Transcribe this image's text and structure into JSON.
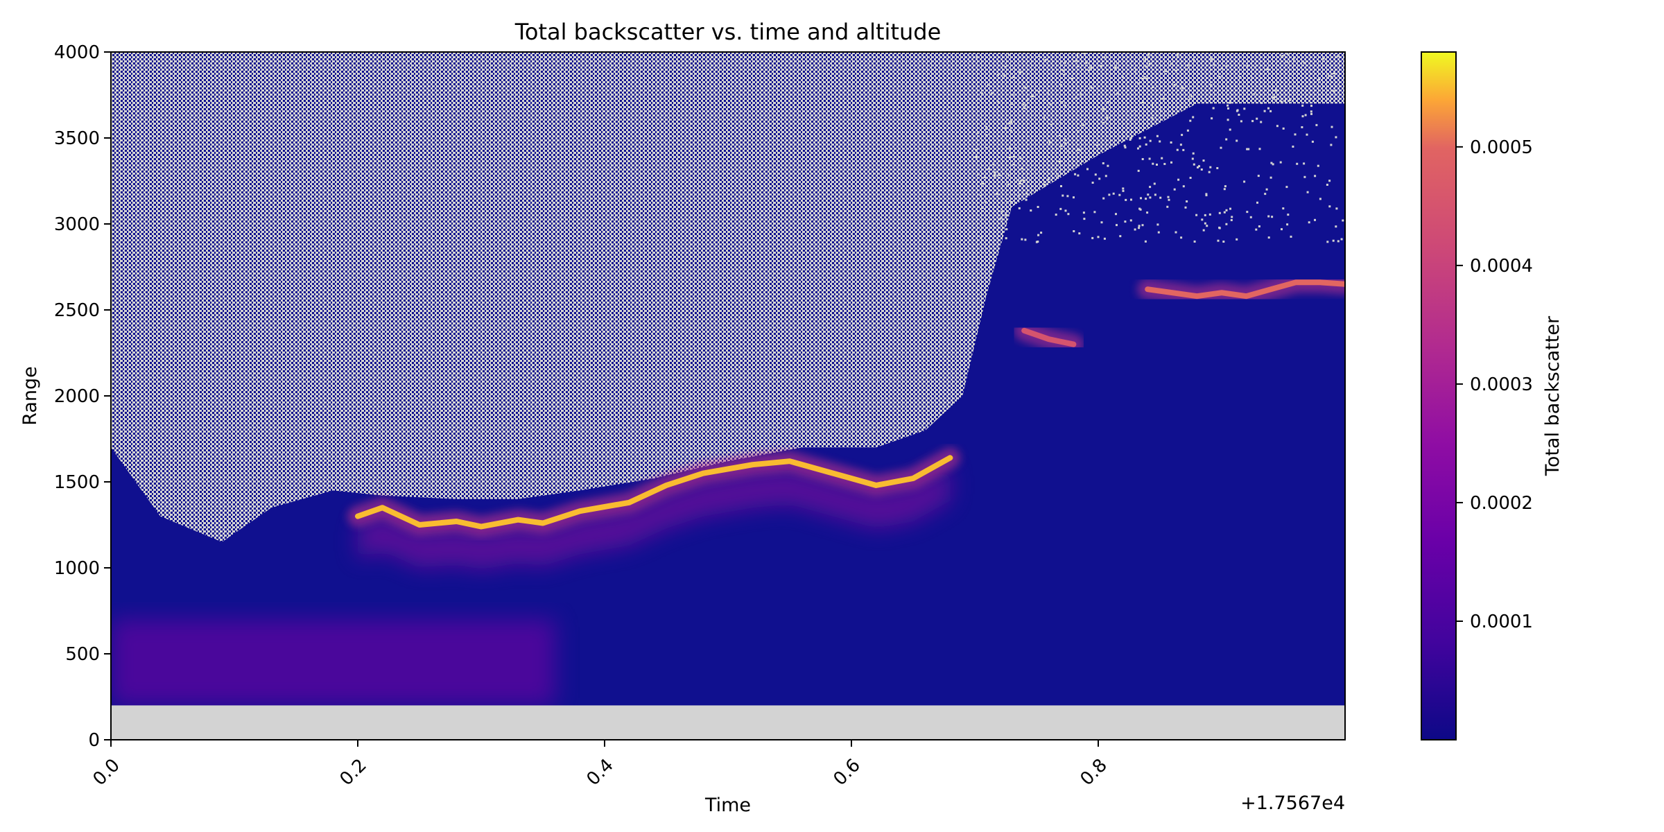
{
  "chart_data": {
    "type": "heatmap",
    "title": "Total backscatter vs. time and altitude",
    "xlabel": "Time",
    "ylabel": "Range",
    "x_offset_label": "+1.7567e4",
    "xlim": [
      0.0,
      1.0
    ],
    "ylim": [
      0,
      4000
    ],
    "x_ticks": [
      0.0,
      0.2,
      0.4,
      0.6,
      0.8
    ],
    "x_tick_labels": [
      "0.0",
      "0.2",
      "0.4",
      "0.6",
      "0.8"
    ],
    "y_ticks": [
      0,
      500,
      1000,
      1500,
      2000,
      2500,
      3000,
      3500,
      4000
    ],
    "y_tick_labels": [
      "0",
      "500",
      "1000",
      "1500",
      "2000",
      "2500",
      "3000",
      "3500",
      "4000"
    ],
    "colormap": "plasma",
    "nodata_color": "#d3d3d3",
    "missing_below_range": 200,
    "colorbar": {
      "label": "Total backscatter",
      "vmin": 0.0,
      "vmax": 0.00058,
      "ticks": [
        0.0001,
        0.0002,
        0.0003,
        0.0004,
        0.0005
      ],
      "tick_labels": [
        "0.0001",
        "0.0002",
        "0.0003",
        "0.0004",
        "0.0005"
      ]
    },
    "features": [
      {
        "name": "boundary-layer-top",
        "peak_value": 0.00055,
        "x": [
          0.2,
          0.22,
          0.25,
          0.28,
          0.3,
          0.33,
          0.35,
          0.38,
          0.42,
          0.45,
          0.48,
          0.52,
          0.55,
          0.58,
          0.6,
          0.62,
          0.65,
          0.68
        ],
        "range": [
          1300,
          1350,
          1250,
          1270,
          1240,
          1280,
          1260,
          1330,
          1380,
          1480,
          1550,
          1600,
          1620,
          1560,
          1520,
          1480,
          1520,
          1640
        ]
      },
      {
        "name": "upper-layer",
        "peak_value": 0.0005,
        "x": [
          0.84,
          0.86,
          0.88,
          0.9,
          0.92,
          0.94,
          0.96,
          0.98,
          1.0
        ],
        "range": [
          2620,
          2600,
          2580,
          2600,
          2580,
          2620,
          2660,
          2660,
          2650
        ]
      },
      {
        "name": "layer-fragment",
        "peak_value": 0.00045,
        "x": [
          0.74,
          0.76,
          0.78
        ],
        "range": [
          2380,
          2330,
          2300
        ]
      }
    ]
  }
}
